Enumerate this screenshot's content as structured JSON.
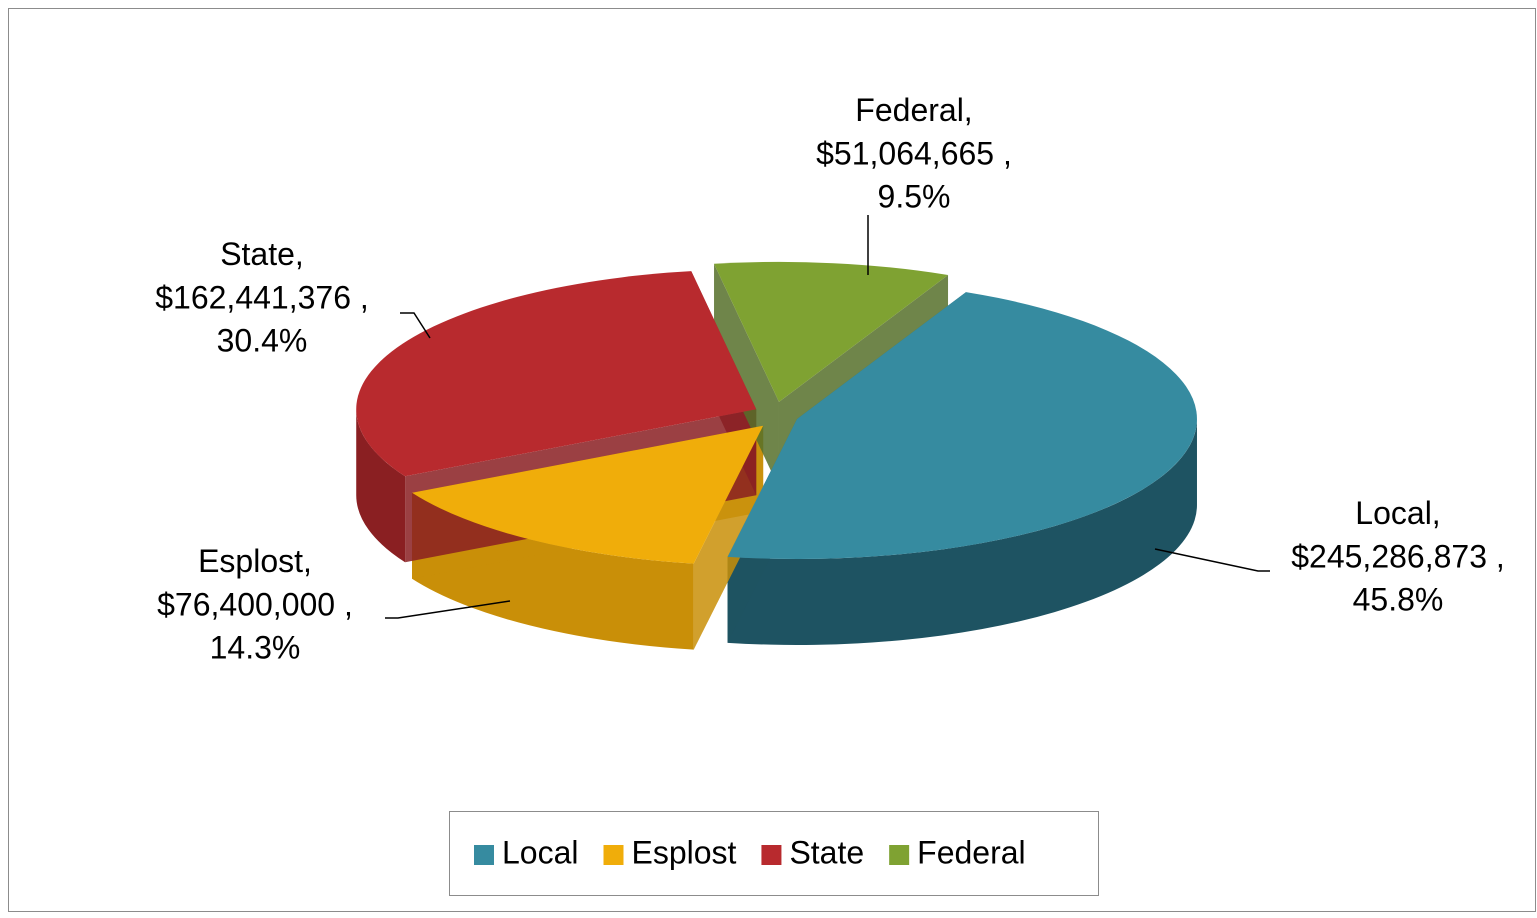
{
  "chart_data": {
    "type": "pie3d",
    "categories": [
      "Local",
      "Esplost",
      "State",
      "Federal"
    ],
    "values": [
      245286873,
      76400000,
      162441376,
      51064665
    ],
    "value_labels": [
      "$245,286,873 ,",
      "$76,400,000 ,",
      "$162,441,376 ,",
      "$51,064,665 ,"
    ],
    "percents": [
      45.8,
      14.3,
      30.4,
      9.5
    ],
    "percent_labels": [
      "45.8%",
      "14.3%",
      "30.4%",
      "9.5%"
    ],
    "label_separator": ",",
    "colors": [
      "#368ba0",
      "#f0ad0a",
      "#b82a2e",
      "#7fa232"
    ],
    "side_colors": [
      "#1e5362",
      "#c98f08",
      "#8a1f22",
      "#56702a"
    ],
    "legend": "bottom"
  }
}
